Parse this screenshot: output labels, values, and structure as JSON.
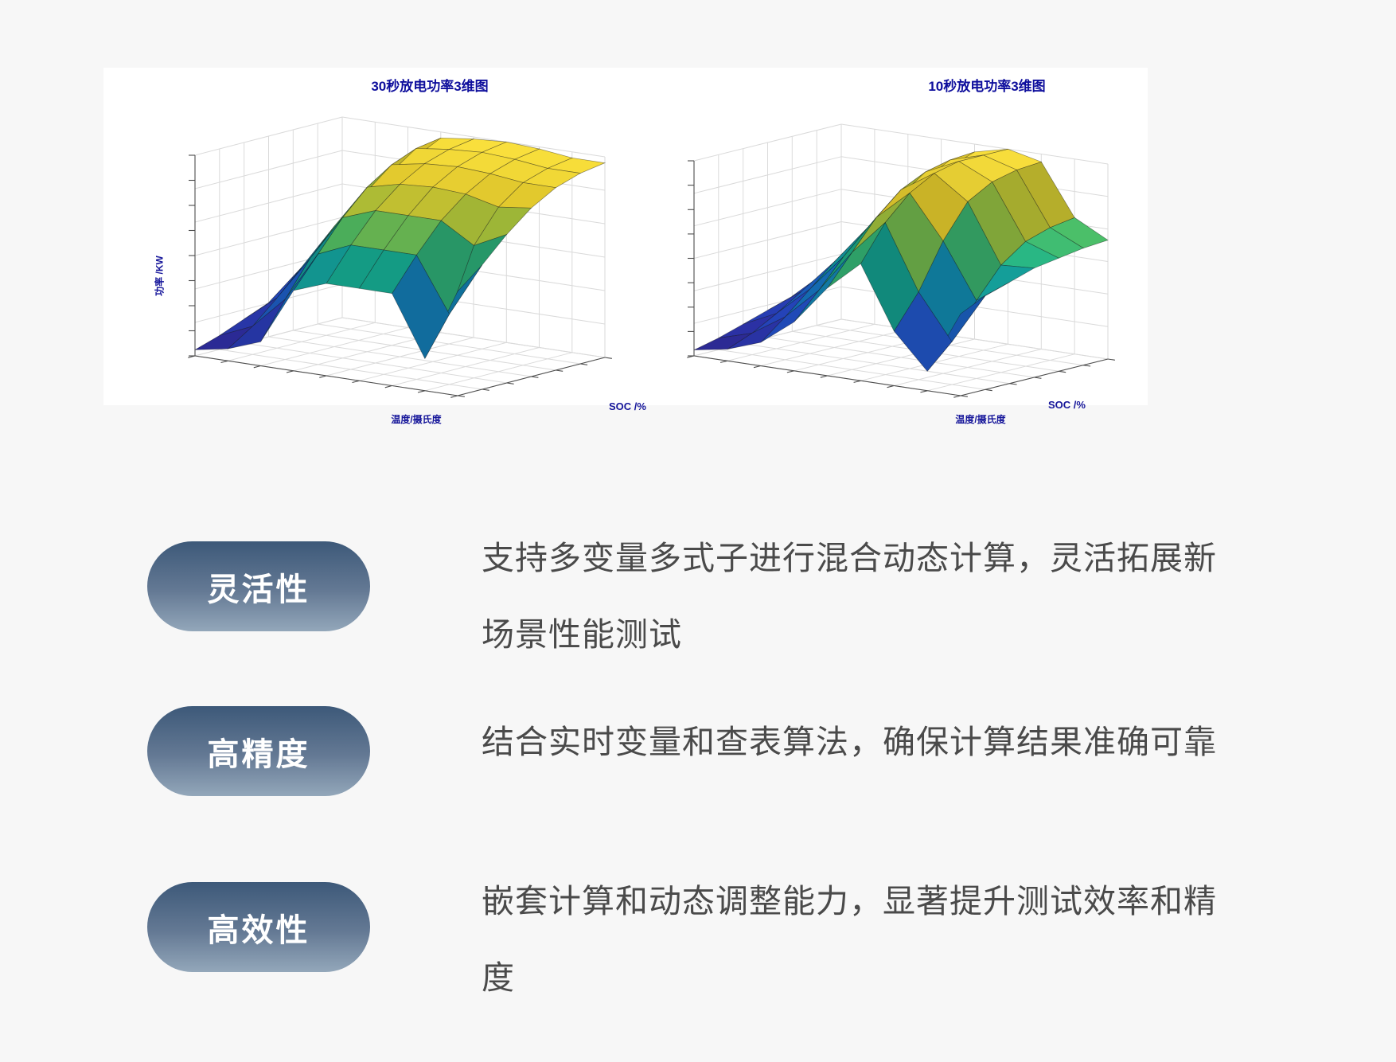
{
  "page": {
    "background": "#f7f7f7",
    "panel_background": "#ffffff"
  },
  "colors": {
    "title_blue": "#0d0d9c",
    "axis_label_blue": "#15159a",
    "pill_gradient_top": "#3d5979",
    "pill_gradient_bottom": "#93a7ba",
    "pill_text": "#ffffff",
    "description_text": "#4a4a4a",
    "surface_low": "#2c227a",
    "surface_high": "#fce23e"
  },
  "chart_data": [
    {
      "type": "surface",
      "title": "30秒放电功率3维图",
      "xlabel": "温度/摄氏度",
      "ylabel": "SOC /%",
      "zlabel": "功率 /KW",
      "colormap": "parula",
      "grid_axes": "rows = SOC from front(low) to back(high); cols = temperature low to high; values = normalized power",
      "z_grid": [
        [
          0.03,
          0.06,
          0.12,
          0.4,
          0.46,
          0.46,
          0.46,
          0.16,
          0.52
        ],
        [
          0.07,
          0.14,
          0.3,
          0.55,
          0.62,
          0.62,
          0.62,
          0.35,
          0.62
        ],
        [
          0.12,
          0.25,
          0.47,
          0.7,
          0.76,
          0.76,
          0.76,
          0.66,
          0.74
        ],
        [
          0.17,
          0.37,
          0.6,
          0.82,
          0.86,
          0.87,
          0.86,
          0.82,
          0.84
        ],
        [
          0.22,
          0.47,
          0.7,
          0.9,
          0.93,
          0.94,
          0.93,
          0.91,
          0.91
        ],
        [
          0.28,
          0.55,
          0.77,
          0.95,
          0.97,
          0.98,
          0.97,
          0.95,
          0.95
        ],
        [
          0.33,
          0.6,
          0.82,
          0.97,
          0.99,
          1.0,
          0.99,
          0.97,
          0.97
        ]
      ]
    },
    {
      "type": "surface",
      "title": "10秒放电功率3维图",
      "xlabel": "温度/摄氏度",
      "ylabel": "SOC /%",
      "colormap": "parula",
      "grid_axes": "rows = SOC from front(low) to back(high); cols = temperature low to high; values = normalized power",
      "z_grid": [
        [
          0.03,
          0.06,
          0.12,
          0.25,
          0.45,
          0.6,
          0.28,
          0.1,
          0.42
        ],
        [
          0.06,
          0.11,
          0.22,
          0.38,
          0.6,
          0.78,
          0.45,
          0.22,
          0.48
        ],
        [
          0.1,
          0.18,
          0.33,
          0.52,
          0.75,
          0.9,
          0.68,
          0.4,
          0.52
        ],
        [
          0.14,
          0.26,
          0.44,
          0.64,
          0.86,
          0.97,
          0.85,
          0.55,
          0.56
        ],
        [
          0.18,
          0.33,
          0.53,
          0.73,
          0.92,
          1.0,
          0.92,
          0.64,
          0.58
        ],
        [
          0.22,
          0.39,
          0.6,
          0.79,
          0.95,
          1.0,
          0.95,
          0.68,
          0.6
        ],
        [
          0.26,
          0.44,
          0.65,
          0.83,
          0.96,
          1.0,
          0.96,
          0.7,
          0.61
        ]
      ]
    }
  ],
  "features": [
    {
      "label": "灵活性",
      "description": "支持多变量多式子进行混合动态计算，灵活拓展新场景性能测试"
    },
    {
      "label": "高精度",
      "description": "结合实时变量和查表算法，确保计算结果准确可靠"
    },
    {
      "label": "高效性",
      "description": "嵌套计算和动态调整能力，显著提升测试效率和精度"
    }
  ]
}
